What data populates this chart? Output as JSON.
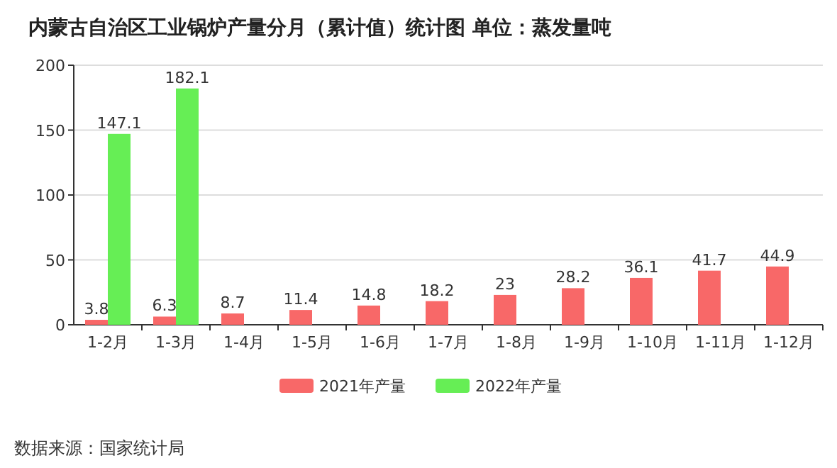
{
  "chart_data": {
    "type": "bar",
    "title": "内蒙古自治区工业锅炉产量分月（累计值）统计图 单位：蒸发量吨",
    "categories": [
      "1-2月",
      "1-3月",
      "1-4月",
      "1-5月",
      "1-6月",
      "1-7月",
      "1-8月",
      "1-9月",
      "1-10月",
      "1-11月",
      "1-12月"
    ],
    "series": [
      {
        "name": "2021年产量",
        "color": "#f86868",
        "values": [
          3.8,
          6.3,
          8.7,
          11.4,
          14.8,
          18.2,
          23,
          28.2,
          36.1,
          41.7,
          44.9
        ]
      },
      {
        "name": "2022年产量",
        "color": "#66ee55",
        "values": [
          147.1,
          182.1,
          null,
          null,
          null,
          null,
          null,
          null,
          null,
          null,
          null
        ]
      }
    ],
    "ylim": [
      0,
      200
    ],
    "yticks": [
      0,
      50,
      100,
      150,
      200
    ],
    "grid": "y",
    "legend": "bottom",
    "data_labels": true,
    "annotations": [
      "数据来源：国家统计局"
    ]
  }
}
